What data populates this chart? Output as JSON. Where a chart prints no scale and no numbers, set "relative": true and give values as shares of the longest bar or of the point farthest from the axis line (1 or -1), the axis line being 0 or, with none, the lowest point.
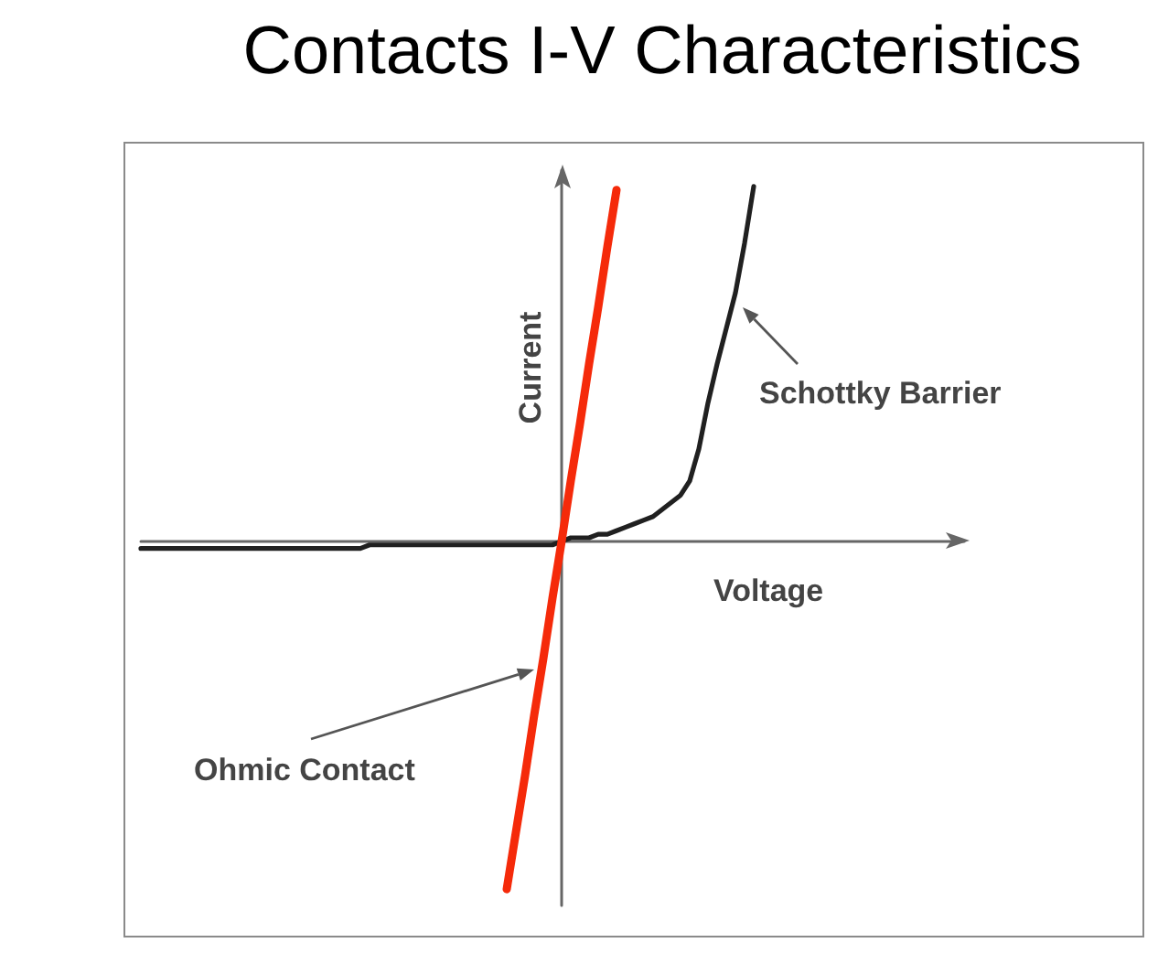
{
  "chart_data": {
    "type": "line",
    "title": "Contacts I-V Characteristics",
    "xlabel": "Voltage",
    "ylabel": "Current",
    "categories": [
      null,
      null,
      null,
      null,
      null,
      null,
      null,
      null,
      null,
      null,
      null,
      null,
      null,
      null,
      null,
      null,
      null,
      null,
      null,
      null,
      null,
      null,
      null,
      null,
      null,
      null,
      null,
      null,
      null,
      null,
      null,
      null,
      null,
      null,
      null,
      null,
      null,
      null,
      null,
      null,
      null,
      null,
      null,
      null,
      null,
      null,
      null,
      null,
      null,
      null,
      null,
      null,
      null,
      null,
      null,
      null,
      null,
      null,
      null,
      null,
      null,
      null,
      null,
      null,
      null,
      null,
      null,
      null,
      null,
      null,
      null,
      null,
      null,
      null,
      null,
      null,
      null,
      null,
      null,
      null,
      null,
      null,
      null,
      null,
      null,
      null,
      null,
      null,
      null,
      null,
      null
    ],
    "series": [
      {
        "name": "Schottky Barrier",
        "color": "#202020",
        "values": [
          -0.02,
          -0.02,
          -0.02,
          -0.02,
          -0.02,
          -0.02,
          -0.02,
          -0.02,
          -0.02,
          -0.02,
          -0.02,
          -0.02,
          -0.02,
          -0.02,
          -0.02,
          -0.02,
          -0.02,
          -0.02,
          -0.02,
          -0.02,
          -0.02,
          -0.02,
          -0.02,
          -0.02,
          -0.02,
          -0.01,
          -0.01,
          -0.01,
          -0.01,
          -0.01,
          -0.01,
          -0.01,
          -0.01,
          -0.01,
          -0.01,
          -0.01,
          -0.01,
          -0.01,
          -0.01,
          -0.01,
          -0.01,
          -0.01,
          -0.01,
          -0.01,
          -0.01,
          -0.01,
          0,
          0.01,
          0.01,
          0.01,
          0.02,
          0.02,
          0.03,
          0.04,
          0.05,
          0.06,
          0.07,
          0.09,
          0.11,
          0.13,
          0.17,
          0.26,
          0.39,
          0.5,
          0.6,
          0.7,
          0.84,
          1,
          null,
          null,
          null,
          null,
          null,
          null,
          null,
          null,
          null,
          null,
          null,
          null,
          null,
          null,
          null,
          null,
          null,
          null,
          null,
          null,
          null,
          null,
          null
        ]
      },
      {
        "name": "Ohmic Contact",
        "color": "#f52a0a",
        "values": [
          null,
          null,
          null,
          null,
          null,
          null,
          null,
          null,
          null,
          null,
          null,
          null,
          null,
          null,
          null,
          null,
          null,
          null,
          null,
          null,
          null,
          null,
          null,
          null,
          null,
          null,
          null,
          null,
          null,
          null,
          null,
          null,
          null,
          null,
          null,
          null,
          null,
          null,
          null,
          null,
          -0.98,
          -0.82,
          -0.66,
          -0.49,
          -0.33,
          -0.16,
          0,
          0.17,
          0.33,
          0.5,
          0.66,
          0.83,
          0.99,
          null,
          null,
          null,
          null,
          null,
          null,
          null,
          null,
          null,
          null,
          null,
          null,
          null,
          null,
          null,
          null,
          null,
          null,
          null,
          null,
          null,
          null,
          null,
          null,
          null,
          null,
          null,
          null,
          null,
          null,
          null,
          null,
          null,
          null,
          null,
          null,
          null,
          null
        ]
      }
    ],
    "relative": true,
    "legend": false,
    "grid": false,
    "marker": "none",
    "line_style": "solid"
  }
}
